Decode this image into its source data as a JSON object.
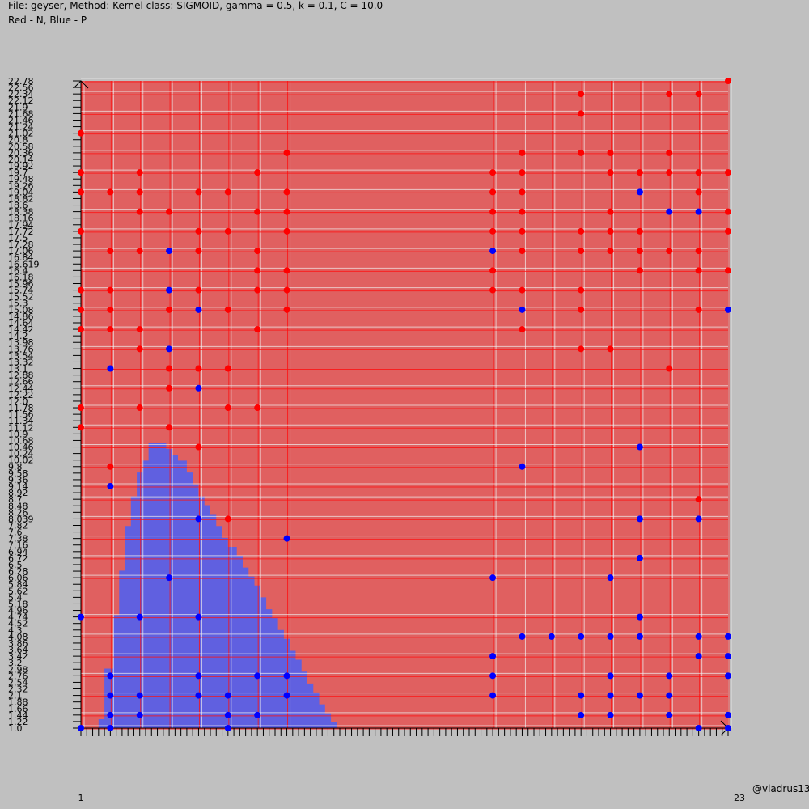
{
  "header": {
    "line1": "File: geyser, Method: Kernel class: SIGMOID, gamma = 0.5, k = 0.1, C = 10.0",
    "line2": "Red - N, Blue - P"
  },
  "credit": "@vladrus13",
  "colors": {
    "background": "#c0c0c0",
    "negative_region": "#e06060",
    "positive_region": "#6060e0",
    "negative_point": "#ff0000",
    "positive_point": "#0000ff",
    "grid_red": "#ff1010",
    "grid_white": "#f0f0f0"
  },
  "chart_data": {
    "type": "scatter",
    "title": "",
    "xlabel": "",
    "ylabel": "",
    "xlim": [
      1,
      23
    ],
    "ylim": [
      1.0,
      22.78
    ],
    "x_tick_labels_visible": [
      "1",
      "23"
    ],
    "y_tick_labels": [
      "22.78",
      "22.56",
      "22.34",
      "22.12",
      "21.9",
      "21.68",
      "21.46",
      "21.24",
      "21.02",
      "20.8",
      "20.58",
      "20.36",
      "20.14",
      "19.92",
      "19.7",
      "19.48",
      "19.26",
      "19.04",
      "18.82",
      "18.6",
      "18.38",
      "18.16",
      "17.94",
      "17.72",
      "17.5",
      "17.28",
      "17.06",
      "16.84",
      "16.619",
      "16.4",
      "16.18",
      "15.96",
      "15.74",
      "15.52",
      "15.3",
      "15.08",
      "14.86",
      "14.64",
      "14.42",
      "14.2",
      "13.98",
      "13.76",
      "13.54",
      "13.32",
      "13.1",
      "12.88",
      "12.66",
      "12.44",
      "12.22",
      "12.0",
      "11.78",
      "11.56",
      "11.34",
      "11.12",
      "10.9",
      "10.68",
      "10.46",
      "10.24",
      "10.02",
      "9.8",
      "9.58",
      "9.36",
      "9.14",
      "8.92",
      "8.7",
      "8.48",
      "8.26",
      "8.039",
      "7.82",
      "7.6",
      "7.38",
      "7.16",
      "6.94",
      "6.72",
      "6.5",
      "6.28",
      "6.06",
      "5.84",
      "5.62",
      "5.4",
      "5.18",
      "4.96",
      "4.74",
      "4.52",
      "4.3",
      "4.08",
      "3.86",
      "3.64",
      "3.42",
      "3.2",
      "2.98",
      "2.76",
      "2.54",
      "2.32",
      "2.1",
      "1.88",
      "1.66",
      "1.44",
      "1.22",
      "1.0"
    ],
    "positive_region_boundary": [
      [
        1.6,
        1.0
      ],
      [
        1.6,
        1.3
      ],
      [
        1.8,
        1.3
      ],
      [
        1.8,
        3.0
      ],
      [
        2.1,
        3.0
      ],
      [
        2.1,
        4.8
      ],
      [
        2.3,
        4.8
      ],
      [
        2.3,
        6.3
      ],
      [
        2.5,
        6.3
      ],
      [
        2.5,
        7.8
      ],
      [
        2.7,
        7.8
      ],
      [
        2.7,
        8.8
      ],
      [
        2.9,
        8.8
      ],
      [
        2.9,
        9.6
      ],
      [
        3.1,
        9.6
      ],
      [
        3.1,
        10.0
      ],
      [
        3.3,
        10.0
      ],
      [
        3.3,
        10.6
      ],
      [
        3.9,
        10.6
      ],
      [
        3.9,
        10.4
      ],
      [
        4.1,
        10.4
      ],
      [
        4.1,
        10.2
      ],
      [
        4.3,
        10.2
      ],
      [
        4.3,
        10.0
      ],
      [
        4.6,
        10.0
      ],
      [
        4.6,
        9.6
      ],
      [
        4.8,
        9.6
      ],
      [
        4.8,
        9.2
      ],
      [
        5.0,
        9.2
      ],
      [
        5.0,
        8.8
      ],
      [
        5.2,
        8.8
      ],
      [
        5.2,
        8.5
      ],
      [
        5.4,
        8.5
      ],
      [
        5.4,
        8.2
      ],
      [
        5.6,
        8.2
      ],
      [
        5.6,
        7.8
      ],
      [
        5.8,
        7.8
      ],
      [
        5.8,
        7.4
      ],
      [
        6.0,
        7.4
      ],
      [
        6.0,
        7.1
      ],
      [
        6.3,
        7.1
      ],
      [
        6.3,
        6.8
      ],
      [
        6.5,
        6.8
      ],
      [
        6.5,
        6.4
      ],
      [
        6.7,
        6.4
      ],
      [
        6.7,
        6.1
      ],
      [
        6.9,
        6.1
      ],
      [
        6.9,
        5.8
      ],
      [
        7.1,
        5.8
      ],
      [
        7.1,
        5.4
      ],
      [
        7.3,
        5.4
      ],
      [
        7.3,
        5.0
      ],
      [
        7.5,
        5.0
      ],
      [
        7.5,
        4.7
      ],
      [
        7.7,
        4.7
      ],
      [
        7.7,
        4.3
      ],
      [
        7.9,
        4.3
      ],
      [
        7.9,
        4.0
      ],
      [
        8.1,
        4.0
      ],
      [
        8.1,
        3.6
      ],
      [
        8.3,
        3.6
      ],
      [
        8.3,
        3.3
      ],
      [
        8.5,
        3.3
      ],
      [
        8.5,
        2.9
      ],
      [
        8.7,
        2.9
      ],
      [
        8.7,
        2.5
      ],
      [
        8.9,
        2.5
      ],
      [
        8.9,
        2.2
      ],
      [
        9.1,
        2.2
      ],
      [
        9.1,
        1.8
      ],
      [
        9.3,
        1.8
      ],
      [
        9.3,
        1.5
      ],
      [
        9.5,
        1.5
      ],
      [
        9.5,
        1.2
      ],
      [
        9.7,
        1.2
      ],
      [
        9.7,
        1.0
      ]
    ],
    "series": [
      {
        "name": "N",
        "points": [
          [
            23,
            22.78
          ],
          [
            18,
            22.34
          ],
          [
            21,
            22.34
          ],
          [
            22,
            22.34
          ],
          [
            18,
            21.68
          ],
          [
            1,
            21.02
          ],
          [
            8,
            20.36
          ],
          [
            16,
            20.36
          ],
          [
            18,
            20.36
          ],
          [
            19,
            20.36
          ],
          [
            21,
            20.36
          ],
          [
            1,
            19.7
          ],
          [
            3,
            19.7
          ],
          [
            7,
            19.7
          ],
          [
            15,
            19.7
          ],
          [
            16,
            19.7
          ],
          [
            19,
            19.7
          ],
          [
            20,
            19.7
          ],
          [
            21,
            19.7
          ],
          [
            22,
            19.7
          ],
          [
            23,
            19.7
          ],
          [
            1,
            19.04
          ],
          [
            2,
            19.04
          ],
          [
            3,
            19.04
          ],
          [
            5,
            19.04
          ],
          [
            6,
            19.04
          ],
          [
            8,
            19.04
          ],
          [
            15,
            19.04
          ],
          [
            16,
            19.04
          ],
          [
            22,
            19.04
          ],
          [
            3,
            18.38
          ],
          [
            4,
            18.38
          ],
          [
            7,
            18.38
          ],
          [
            8,
            18.38
          ],
          [
            15,
            18.38
          ],
          [
            16,
            18.38
          ],
          [
            19,
            18.38
          ],
          [
            23,
            18.38
          ],
          [
            1,
            17.72
          ],
          [
            5,
            17.72
          ],
          [
            6,
            17.72
          ],
          [
            8,
            17.72
          ],
          [
            15,
            17.72
          ],
          [
            16,
            17.72
          ],
          [
            18,
            17.72
          ],
          [
            19,
            17.72
          ],
          [
            20,
            17.72
          ],
          [
            23,
            17.72
          ],
          [
            2,
            17.06
          ],
          [
            3,
            17.06
          ],
          [
            5,
            17.06
          ],
          [
            7,
            17.06
          ],
          [
            16,
            17.06
          ],
          [
            18,
            17.06
          ],
          [
            19,
            17.06
          ],
          [
            20,
            17.06
          ],
          [
            21,
            17.06
          ],
          [
            22,
            17.06
          ],
          [
            7,
            16.4
          ],
          [
            8,
            16.4
          ],
          [
            15,
            16.4
          ],
          [
            20,
            16.4
          ],
          [
            22,
            16.4
          ],
          [
            23,
            16.4
          ],
          [
            1,
            15.74
          ],
          [
            2,
            15.74
          ],
          [
            5,
            15.74
          ],
          [
            7,
            15.74
          ],
          [
            8,
            15.74
          ],
          [
            15,
            15.74
          ],
          [
            16,
            15.74
          ],
          [
            18,
            15.74
          ],
          [
            1,
            15.08
          ],
          [
            2,
            15.08
          ],
          [
            4,
            15.08
          ],
          [
            6,
            15.08
          ],
          [
            8,
            15.08
          ],
          [
            18,
            15.08
          ],
          [
            22,
            15.08
          ],
          [
            1,
            14.42
          ],
          [
            2,
            14.42
          ],
          [
            3,
            14.42
          ],
          [
            7,
            14.42
          ],
          [
            16,
            14.42
          ],
          [
            3,
            13.76
          ],
          [
            18,
            13.76
          ],
          [
            19,
            13.76
          ],
          [
            4,
            13.1
          ],
          [
            5,
            13.1
          ],
          [
            6,
            13.1
          ],
          [
            21,
            13.1
          ],
          [
            4,
            12.44
          ],
          [
            1,
            11.78
          ],
          [
            3,
            11.78
          ],
          [
            6,
            11.78
          ],
          [
            7,
            11.78
          ],
          [
            1,
            11.12
          ],
          [
            4,
            11.12
          ],
          [
            5,
            10.46
          ],
          [
            2,
            9.8
          ],
          [
            22,
            8.7
          ],
          [
            6,
            8.04
          ]
        ]
      },
      {
        "name": "P",
        "points": [
          [
            20,
            19.04
          ],
          [
            21,
            18.38
          ],
          [
            22,
            18.38
          ],
          [
            4,
            17.06
          ],
          [
            15,
            17.06
          ],
          [
            4,
            15.74
          ],
          [
            5,
            15.08
          ],
          [
            16,
            15.08
          ],
          [
            23,
            15.08
          ],
          [
            4,
            13.76
          ],
          [
            2,
            13.1
          ],
          [
            5,
            12.44
          ],
          [
            20,
            10.46
          ],
          [
            16,
            9.8
          ],
          [
            2,
            9.14
          ],
          [
            5,
            8.04
          ],
          [
            20,
            8.04
          ],
          [
            22,
            8.04
          ],
          [
            8,
            7.38
          ],
          [
            20,
            6.72
          ],
          [
            4,
            6.06
          ],
          [
            15,
            6.06
          ],
          [
            19,
            6.06
          ],
          [
            1,
            4.74
          ],
          [
            3,
            4.74
          ],
          [
            5,
            4.74
          ],
          [
            20,
            4.74
          ],
          [
            16,
            4.08
          ],
          [
            17,
            4.08
          ],
          [
            18,
            4.08
          ],
          [
            19,
            4.08
          ],
          [
            20,
            4.08
          ],
          [
            22,
            4.08
          ],
          [
            23,
            4.08
          ],
          [
            15,
            3.42
          ],
          [
            22,
            3.42
          ],
          [
            23,
            3.42
          ],
          [
            2,
            2.76
          ],
          [
            5,
            2.76
          ],
          [
            7,
            2.76
          ],
          [
            8,
            2.76
          ],
          [
            15,
            2.76
          ],
          [
            19,
            2.76
          ],
          [
            21,
            2.76
          ],
          [
            23,
            2.76
          ],
          [
            2,
            2.1
          ],
          [
            3,
            2.1
          ],
          [
            5,
            2.1
          ],
          [
            6,
            2.1
          ],
          [
            8,
            2.1
          ],
          [
            15,
            2.1
          ],
          [
            18,
            2.1
          ],
          [
            19,
            2.1
          ],
          [
            20,
            2.1
          ],
          [
            21,
            2.1
          ],
          [
            2,
            1.44
          ],
          [
            3,
            1.44
          ],
          [
            6,
            1.44
          ],
          [
            7,
            1.44
          ],
          [
            18,
            1.44
          ],
          [
            19,
            1.44
          ],
          [
            21,
            1.44
          ],
          [
            23,
            1.44
          ],
          [
            1,
            1.0
          ],
          [
            2,
            1.0
          ],
          [
            6,
            1.0
          ],
          [
            22,
            1.0
          ],
          [
            23,
            1.0
          ]
        ]
      }
    ],
    "grid": true,
    "legend": "none"
  }
}
